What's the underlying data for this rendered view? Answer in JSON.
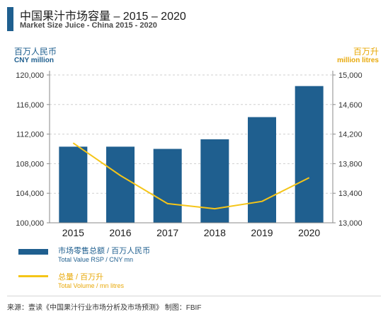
{
  "header": {
    "title": "中国果汁市场容量 – 2015 – 2020",
    "subtitle": "Market Size Juice - China 2015 - 2020"
  },
  "axes": {
    "left_label_cn": "百万人民币",
    "left_label_en": "CNY million",
    "right_label_cn": "百万升",
    "right_label_en": "million litres"
  },
  "legend": {
    "bar_cn": "市场零售总额 / 百万人民币",
    "bar_en": "Total Value RSP / CNY mn",
    "line_cn": "总量 / 百万升",
    "line_en": "Total Volume / mn litres"
  },
  "source": "来源：壹读《中国果汁行业市场分析及市场预测》 制图：FBIF",
  "colors": {
    "bar": "#1f5f8f",
    "line": "#f5c518",
    "left_axis": "#1f5f8f",
    "right_axis": "#e8a90a",
    "grid": "#cfcfcf"
  },
  "chart_data": {
    "type": "bar",
    "categories": [
      "2015",
      "2016",
      "2017",
      "2018",
      "2019",
      "2020"
    ],
    "series": [
      {
        "name": "市场零售总额 / 百万人民币",
        "type": "bar",
        "axis": "left",
        "values": [
          110300,
          110300,
          110000,
          111300,
          114300,
          118500
        ]
      },
      {
        "name": "总量 / 百万升",
        "type": "line",
        "axis": "right",
        "values": [
          14080,
          13640,
          13260,
          13190,
          13290,
          13610
        ]
      }
    ],
    "ylim_left": [
      100000,
      120000
    ],
    "yticks_left": [
      "100,000",
      "104,000",
      "108,000",
      "112,000",
      "116,000",
      "120,000"
    ],
    "yticks_left_values": [
      100000,
      104000,
      108000,
      112000,
      116000,
      120000
    ],
    "ylim_right": [
      13000,
      15000
    ],
    "yticks_right": [
      "13,000",
      "13,400",
      "13,800",
      "14,200",
      "14,600",
      "15,000"
    ],
    "yticks_right_values": [
      13000,
      13400,
      13800,
      14200,
      14600,
      15000
    ],
    "grid": "horizontal dashed"
  }
}
